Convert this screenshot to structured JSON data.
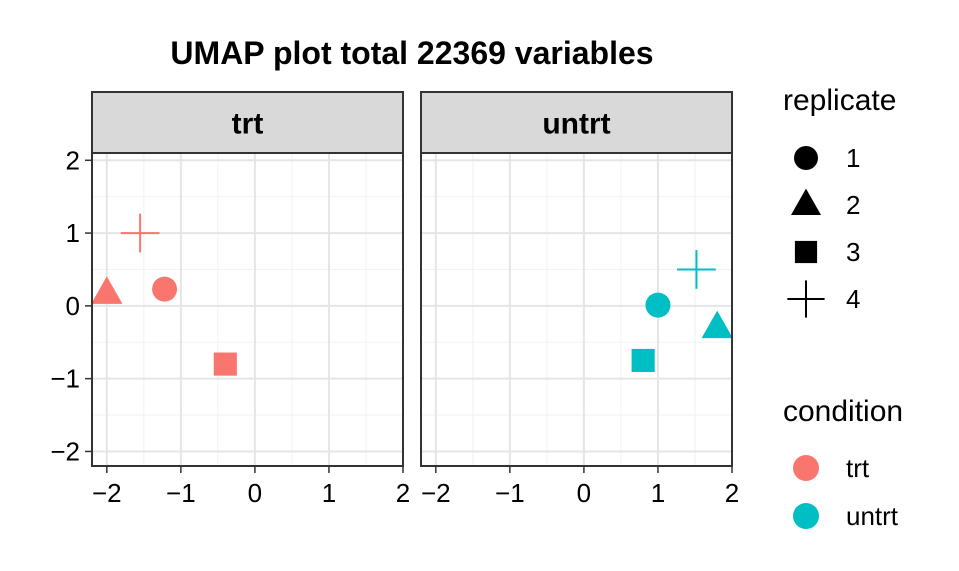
{
  "chart_data": {
    "type": "scatter",
    "title": "UMAP plot total 22369 variables",
    "xlabel": "",
    "ylabel": "",
    "xlim": [
      -2.2,
      2
    ],
    "ylim": [
      -2.2,
      2.1
    ],
    "x_ticks": [
      "−2",
      "−1",
      "0",
      "1",
      "2"
    ],
    "y_ticks": [
      "2",
      "1",
      "0",
      "−1",
      "−2"
    ],
    "grid": true,
    "legend_position": "right",
    "facets": [
      {
        "label": "trt",
        "color": "#F8766D",
        "points": [
          {
            "x": -1.22,
            "y": 0.23,
            "replicate": "1"
          },
          {
            "x": -2.0,
            "y": 0.17,
            "replicate": "2"
          },
          {
            "x": -0.4,
            "y": -0.8,
            "replicate": "3"
          },
          {
            "x": -1.55,
            "y": 1.0,
            "replicate": "4"
          }
        ]
      },
      {
        "label": "untrt",
        "color": "#00BFC4",
        "points": [
          {
            "x": 1.0,
            "y": 0.01,
            "replicate": "1"
          },
          {
            "x": 1.8,
            "y": -0.3,
            "replicate": "2"
          },
          {
            "x": 0.8,
            "y": -0.75,
            "replicate": "3"
          },
          {
            "x": 1.52,
            "y": 0.5,
            "replicate": "4"
          }
        ]
      }
    ],
    "legends": {
      "replicate": {
        "title": "replicate",
        "entries": [
          {
            "label": "1",
            "shape": "circle"
          },
          {
            "label": "2",
            "shape": "triangle"
          },
          {
            "label": "3",
            "shape": "square"
          },
          {
            "label": "4",
            "shape": "plus"
          }
        ]
      },
      "condition": {
        "title": "condition",
        "entries": [
          {
            "label": "trt",
            "color": "#F8766D"
          },
          {
            "label": "untrt",
            "color": "#00BFC4"
          }
        ]
      }
    }
  }
}
